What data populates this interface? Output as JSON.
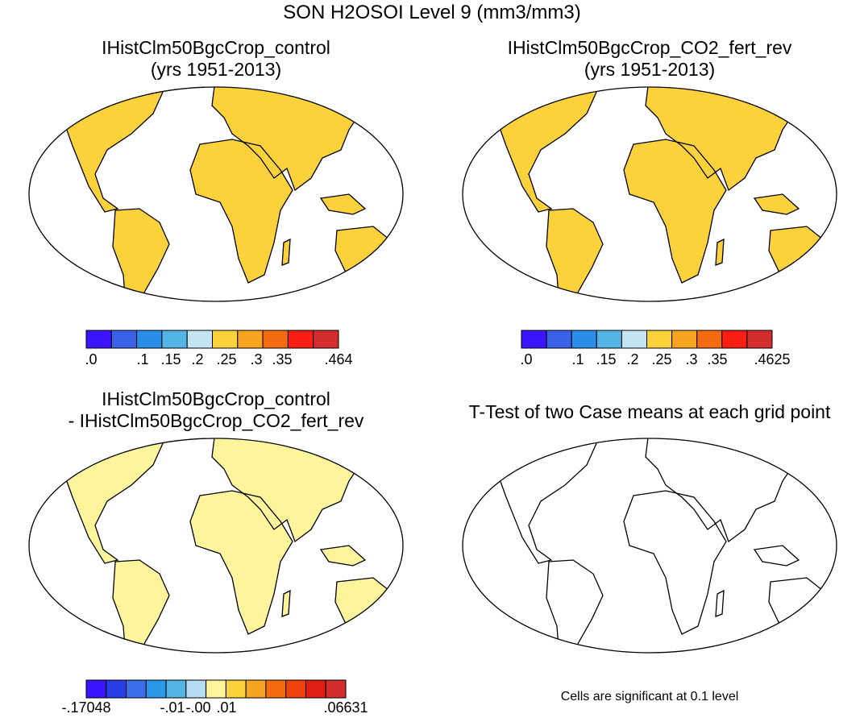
{
  "figure": {
    "title": "SON H2OSOI Level 9 (mm3/mm3)"
  },
  "panels": [
    {
      "title_line1": "IHistClm50BgcCrop_control",
      "title_line2": "(yrs 1951-2013)",
      "colorbar": {
        "colors": [
          "#3c14ff",
          "#3a62e8",
          "#2a8ee8",
          "#54b4e6",
          "#c4e4f4",
          "#fbd23c",
          "#f7a420",
          "#f56c10",
          "#fa1e14",
          "#d42d2d"
        ],
        "labels": [
          ".0",
          ".1",
          ".15",
          ".2",
          ".25",
          ".3",
          ".35",
          ".464"
        ]
      }
    },
    {
      "title_line1": "IHistClm50BgcCrop_CO2_fert_rev",
      "title_line2": "(yrs 1951-2013)",
      "colorbar": {
        "colors": [
          "#3c14ff",
          "#3a62e8",
          "#2a8ee8",
          "#54b4e6",
          "#c4e4f4",
          "#fbd23c",
          "#f7a420",
          "#f56c10",
          "#fa1e14",
          "#d42d2d"
        ],
        "labels": [
          ".0",
          ".1",
          ".15",
          ".2",
          ".25",
          ".3",
          ".35",
          ".4625"
        ]
      }
    },
    {
      "title_line1": "IHistClm50BgcCrop_control",
      "title_line2": "- IHistClm50BgcCrop_CO2_fert_rev",
      "colorbar": {
        "colors": [
          "#3c14ff",
          "#2a3ee6",
          "#3a6ee8",
          "#2a98e8",
          "#54b4e6",
          "#b4dcf2",
          "#fdf49c",
          "#fbd23c",
          "#f7a420",
          "#f56c10",
          "#f2420c",
          "#e01e14",
          "#d42d2d"
        ],
        "labels": [
          "-.17048",
          "-.01",
          "-.00",
          ".01",
          ".06631"
        ]
      }
    },
    {
      "title_line1": "T-Test of two Case means at each grid point",
      "note": "Cells are significant at 0.1 level",
      "highlight_color": "#ff0000"
    }
  ]
}
